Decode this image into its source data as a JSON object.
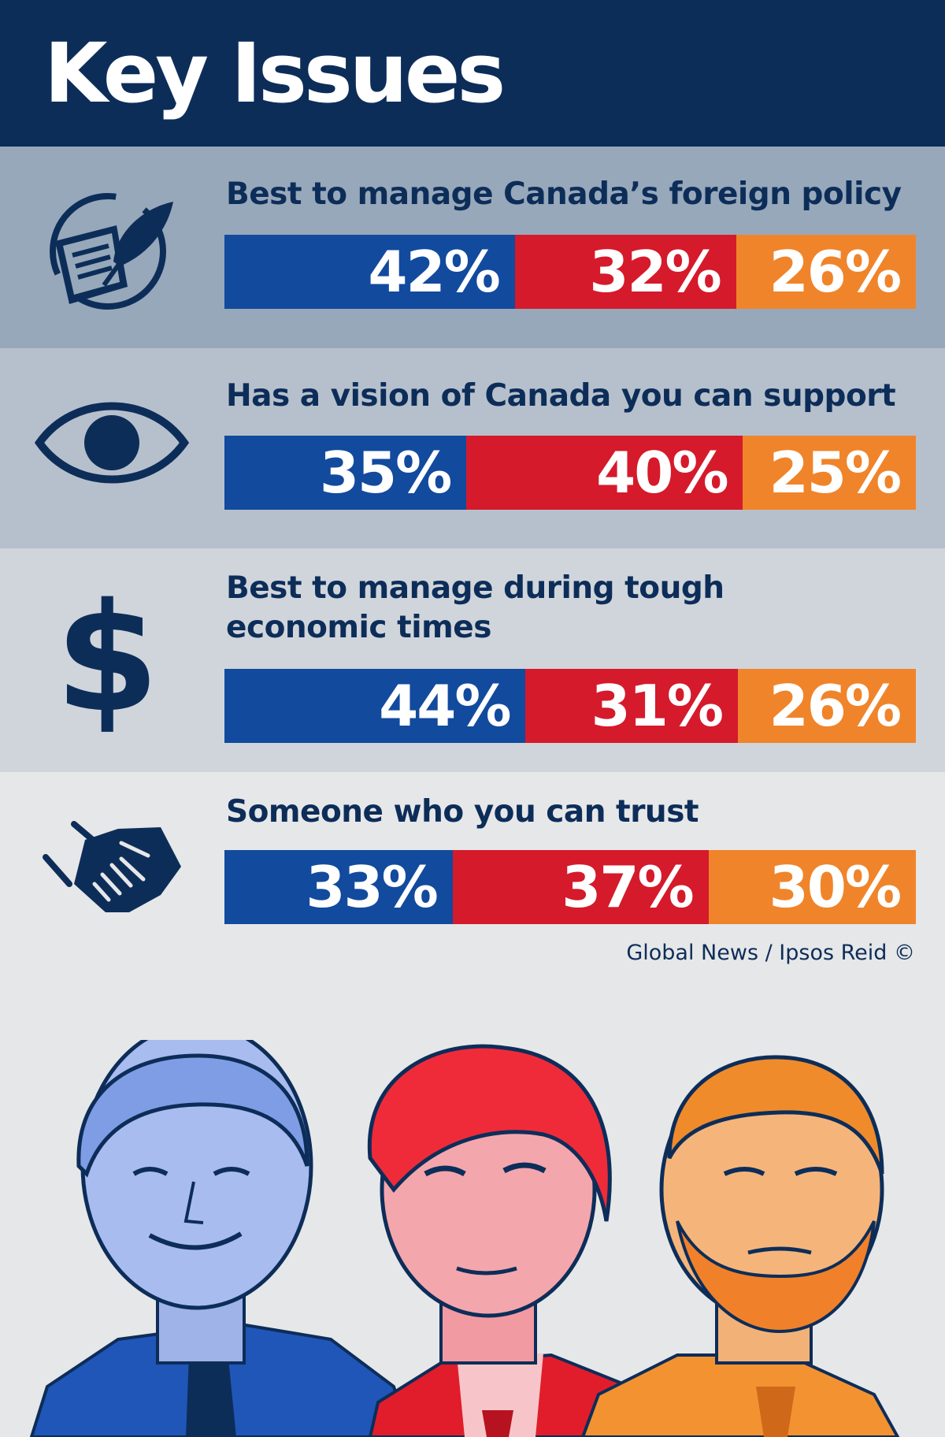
{
  "title": "Key Issues",
  "colors": {
    "conservative": "#124a9e",
    "liberal": "#d51a2b",
    "ndp": "#f0842a",
    "navy": "#0d2d59"
  },
  "source": "Global News / Ipsos Reid ©",
  "chart_data": {
    "type": "bar",
    "stacked": true,
    "orientation": "horizontal",
    "title": "Key Issues",
    "categories": [
      "Best to manage Canada’s foreign policy",
      "Has a vision of Canada you can support",
      "Best to manage during tough economic times",
      "Someone who you can trust"
    ],
    "series": [
      {
        "values": [
          42,
          35,
          44,
          33
        ],
        "labels": [
          "42%",
          "35%",
          "44%",
          "33%"
        ],
        "color": "#124a9e"
      },
      {
        "values": [
          32,
          40,
          31,
          37
        ],
        "labels": [
          "32%",
          "40%",
          "31%",
          "37%"
        ],
        "color": "#d51a2b"
      },
      {
        "values": [
          26,
          25,
          26,
          30
        ],
        "labels": [
          "26%",
          "25%",
          "26%",
          "30%"
        ],
        "color": "#f0842a"
      }
    ],
    "legend": "none"
  },
  "sections": [
    {
      "label": "Best to manage Canada’s foreign policy",
      "icon": "quill-document-icon",
      "bg": "#97a8ba"
    },
    {
      "label": "Has a vision of Canada you can support",
      "icon": "eye-icon",
      "bg": "#b6c0cc"
    },
    {
      "label": "Best to manage during tough\neconomic times",
      "icon": "dollar-sign-icon",
      "bg": "#d0d5db"
    },
    {
      "label": "Someone who you can trust",
      "icon": "handshake-icon",
      "bg": "#e6e7e8"
    }
  ]
}
